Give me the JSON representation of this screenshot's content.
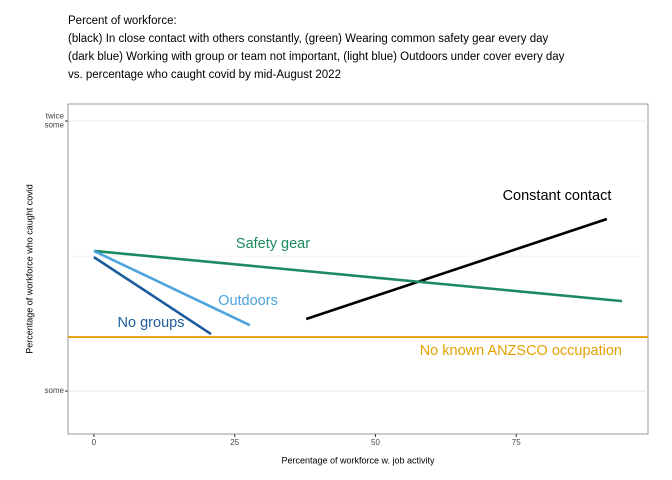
{
  "chart_data": {
    "type": "line",
    "title": [
      "Percent of workforce:",
      "(black) In close contact with others constantly, (green) Wearing common safety gear every day",
      "(dark blue) Working with group or team not important, (light blue) Outdoors under cover every day",
      "vs. percentage who caught covid by mid-August 2022"
    ],
    "x_label": "Percentage of workforce w. job activity",
    "y_label": "Percentage of workforce who caught covid",
    "xlim": [
      -4.6,
      98.4
    ],
    "xticks": [
      0,
      25,
      50,
      75
    ],
    "ylim": [
      0.841,
      2.063
    ],
    "yticks": [
      {
        "value": 1,
        "label": "some"
      },
      {
        "value": 2,
        "label": "twice some"
      }
    ],
    "y_minor_ticks": [
      1.5
    ],
    "grid": true,
    "series": [
      {
        "name": "Constant contact",
        "color": "#000000",
        "x": [
          37.7,
          91.1
        ],
        "values": [
          1.267,
          1.637
        ]
      },
      {
        "name": "Safety gear",
        "color": "#1b8a5e",
        "x": [
          0,
          93.8
        ],
        "values": [
          1.519,
          1.333
        ]
      },
      {
        "name": "Outdoors",
        "color": "#4da3dd",
        "x": [
          0,
          27.7
        ],
        "values": [
          1.519,
          1.244
        ]
      },
      {
        "name": "No groups",
        "color": "#1c5c9c",
        "x": [
          0,
          20.8
        ],
        "values": [
          1.496,
          1.211
        ]
      }
    ],
    "hline": {
      "name": "No known ANZSCO occupation",
      "color": "#e69f00",
      "value": 1.2
    }
  }
}
